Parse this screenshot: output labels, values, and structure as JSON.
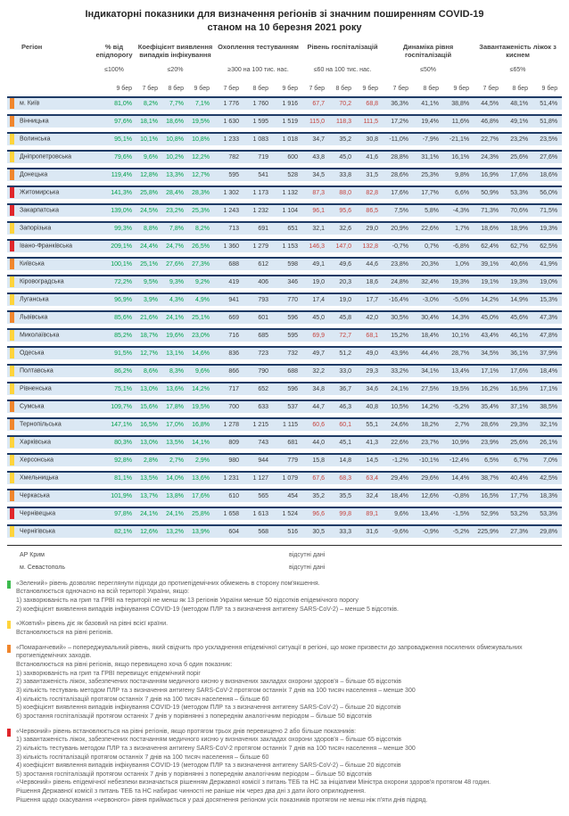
{
  "title": {
    "line1": "Індикаторні показники для визначення регіонів зі значним поширенням COVID-19",
    "line2": "станом на 10 березня 2021 року"
  },
  "level_colors": {
    "yellow": "#ffd43b",
    "orange": "#f0862d",
    "red": "#e0262b",
    "green": "#3dbb4f"
  },
  "value_colors": {
    "green_text": "#00a14b",
    "red_text": "#c5443e",
    "row_band": "#dbe8f4",
    "row_border": "#1f3b66"
  },
  "table": {
    "region_header": "Регіон",
    "groups": [
      {
        "title": "% від епідпорогу",
        "threshold": "≤100%"
      },
      {
        "title": "Коефіцієнт виявлення випадків інфікування",
        "threshold": "≤20%"
      },
      {
        "title": "Охоплення тестуванням",
        "threshold": "≥300 на 100 тис. нас."
      },
      {
        "title": "Рівень госпіталізацій",
        "threshold": "≤60 на 100 тис. нас."
      },
      {
        "title": "Динаміка рівня госпіталізацій",
        "threshold": "≤50%"
      },
      {
        "title": "Завантаженість ліжок з киснем",
        "threshold": "≤65%"
      }
    ],
    "dates": [
      "9 бер",
      "7 бер",
      "8 бер",
      "9 бер",
      "7 бер",
      "8 бер",
      "9 бер",
      "7 бер",
      "8 бер",
      "9 бер",
      "7 бер",
      "8 бер",
      "9 бер",
      "7 бер",
      "8 бер",
      "9 бер"
    ],
    "rows": [
      {
        "region": "м. Київ",
        "level": "orange",
        "epi": "81,0%",
        "coef": [
          "8,2%",
          "7,7%",
          "7,1%"
        ],
        "test": [
          "1 776",
          "1 760",
          "1 916"
        ],
        "hosp": [
          "67,7",
          "70,2",
          "68,8"
        ],
        "dyn": [
          "36,3%",
          "41,1%",
          "38,8%"
        ],
        "beds": [
          "44,5%",
          "48,1%",
          "51,4%"
        ]
      },
      {
        "region": "Вінницька",
        "level": "orange",
        "epi": "97,6%",
        "coef": [
          "18,1%",
          "18,6%",
          "19,5%"
        ],
        "test": [
          "1 630",
          "1 595",
          "1 519"
        ],
        "hosp": [
          "115,0",
          "118,3",
          "111,5"
        ],
        "dyn": [
          "17,2%",
          "19,4%",
          "11,6%"
        ],
        "beds": [
          "46,8%",
          "49,1%",
          "51,8%"
        ]
      },
      {
        "region": "Волинська",
        "level": "yellow",
        "epi": "95,1%",
        "coef": [
          "10,1%",
          "10,8%",
          "10,8%"
        ],
        "test": [
          "1 233",
          "1 083",
          "1 018"
        ],
        "hosp": [
          "34,7",
          "35,2",
          "30,8"
        ],
        "dyn": [
          "-11,0%",
          "-7,9%",
          "-21,1%"
        ],
        "beds": [
          "22,7%",
          "23,2%",
          "23,5%"
        ]
      },
      {
        "region": "Дніпропетровська",
        "level": "yellow",
        "epi": "79,6%",
        "coef": [
          "9,6%",
          "10,2%",
          "12,2%"
        ],
        "test": [
          "782",
          "719",
          "600"
        ],
        "hosp": [
          "43,8",
          "45,0",
          "41,6"
        ],
        "dyn": [
          "28,8%",
          "31,1%",
          "16,1%"
        ],
        "beds": [
          "24,3%",
          "25,6%",
          "27,6%"
        ]
      },
      {
        "region": "Донецька",
        "level": "orange",
        "epi": "119,4%",
        "coef": [
          "12,8%",
          "13,3%",
          "12,7%"
        ],
        "test": [
          "595",
          "541",
          "528"
        ],
        "hosp": [
          "34,5",
          "33,8",
          "31,5"
        ],
        "dyn": [
          "28,6%",
          "25,3%",
          "9,8%"
        ],
        "beds": [
          "16,9%",
          "17,6%",
          "18,6%"
        ]
      },
      {
        "region": "Житомирська",
        "level": "red",
        "epi": "141,3%",
        "coef": [
          "25,8%",
          "28,4%",
          "28,3%"
        ],
        "test": [
          "1 302",
          "1 173",
          "1 132"
        ],
        "hosp": [
          "87,3",
          "88,0",
          "82,8"
        ],
        "dyn": [
          "17,6%",
          "17,7%",
          "6,6%"
        ],
        "beds": [
          "50,9%",
          "53,3%",
          "56,0%"
        ]
      },
      {
        "region": "Закарпатська",
        "level": "red",
        "epi": "139,0%",
        "coef": [
          "24,5%",
          "23,2%",
          "25,3%"
        ],
        "test": [
          "1 243",
          "1 232",
          "1 104"
        ],
        "hosp": [
          "96,1",
          "95,6",
          "86,5"
        ],
        "dyn": [
          "7,5%",
          "5,8%",
          "-4,3%"
        ],
        "beds": [
          "71,3%",
          "70,6%",
          "71,5%"
        ]
      },
      {
        "region": "Запорізька",
        "level": "yellow",
        "epi": "99,3%",
        "coef": [
          "8,8%",
          "7,8%",
          "8,2%"
        ],
        "test": [
          "713",
          "691",
          "651"
        ],
        "hosp": [
          "32,1",
          "32,6",
          "29,0"
        ],
        "dyn": [
          "20,9%",
          "22,6%",
          "1,7%"
        ],
        "beds": [
          "18,6%",
          "18,9%",
          "19,3%"
        ]
      },
      {
        "region": "Івано-Франківська",
        "level": "red",
        "epi": "209,1%",
        "coef": [
          "24,4%",
          "24,7%",
          "26,5%"
        ],
        "test": [
          "1 360",
          "1 279",
          "1 153"
        ],
        "hosp": [
          "146,3",
          "147,0",
          "132,8"
        ],
        "dyn": [
          "-0,7%",
          "0,7%",
          "-6,8%"
        ],
        "beds": [
          "62,4%",
          "62,7%",
          "62,5%"
        ]
      },
      {
        "region": "Київська",
        "level": "orange",
        "epi": "100,1%",
        "coef": [
          "25,1%",
          "27,6%",
          "27,3%"
        ],
        "test": [
          "688",
          "612",
          "598"
        ],
        "hosp": [
          "49,1",
          "49,6",
          "44,6"
        ],
        "dyn": [
          "23,8%",
          "20,3%",
          "1,0%"
        ],
        "beds": [
          "39,1%",
          "40,6%",
          "41,9%"
        ]
      },
      {
        "region": "Кіровоградська",
        "level": "yellow",
        "epi": "72,2%",
        "coef": [
          "9,5%",
          "9,3%",
          "9,2%"
        ],
        "test": [
          "419",
          "406",
          "346"
        ],
        "hosp": [
          "19,0",
          "20,3",
          "18,6"
        ],
        "dyn": [
          "24,8%",
          "32,4%",
          "19,3%"
        ],
        "beds": [
          "19,1%",
          "19,3%",
          "19,0%"
        ]
      },
      {
        "region": "Луганська",
        "level": "yellow",
        "epi": "96,9%",
        "coef": [
          "3,9%",
          "4,3%",
          "4,9%"
        ],
        "test": [
          "941",
          "793",
          "770"
        ],
        "hosp": [
          "17,4",
          "19,0",
          "17,7"
        ],
        "dyn": [
          "-16,4%",
          "-3,0%",
          "-5,6%"
        ],
        "beds": [
          "14,2%",
          "14,9%",
          "15,3%"
        ]
      },
      {
        "region": "Львівська",
        "level": "orange",
        "epi": "85,6%",
        "coef": [
          "21,6%",
          "24,1%",
          "25,1%"
        ],
        "test": [
          "669",
          "601",
          "596"
        ],
        "hosp": [
          "45,0",
          "45,8",
          "42,0"
        ],
        "dyn": [
          "30,5%",
          "30,4%",
          "14,3%"
        ],
        "beds": [
          "45,0%",
          "45,6%",
          "47,3%"
        ]
      },
      {
        "region": "Миколаївська",
        "level": "yellow",
        "epi": "85,2%",
        "coef": [
          "18,7%",
          "19,6%",
          "23,0%"
        ],
        "test": [
          "716",
          "685",
          "595"
        ],
        "hosp": [
          "69,9",
          "72,7",
          "68,1"
        ],
        "dyn": [
          "15,2%",
          "18,4%",
          "10,1%"
        ],
        "beds": [
          "43,4%",
          "46,1%",
          "47,8%"
        ]
      },
      {
        "region": "Одеська",
        "level": "yellow",
        "epi": "91,5%",
        "coef": [
          "12,7%",
          "13,1%",
          "14,6%"
        ],
        "test": [
          "836",
          "723",
          "732"
        ],
        "hosp": [
          "49,7",
          "51,2",
          "49,0"
        ],
        "dyn": [
          "43,9%",
          "44,4%",
          "28,7%"
        ],
        "beds": [
          "34,5%",
          "36,1%",
          "37,9%"
        ]
      },
      {
        "region": "Полтавська",
        "level": "yellow",
        "epi": "86,2%",
        "coef": [
          "8,6%",
          "8,3%",
          "9,6%"
        ],
        "test": [
          "866",
          "790",
          "688"
        ],
        "hosp": [
          "32,2",
          "33,0",
          "29,3"
        ],
        "dyn": [
          "33,2%",
          "34,1%",
          "13,4%"
        ],
        "beds": [
          "17,1%",
          "17,6%",
          "18,4%"
        ]
      },
      {
        "region": "Рівненська",
        "level": "yellow",
        "epi": "75,1%",
        "coef": [
          "13,0%",
          "13,6%",
          "14,2%"
        ],
        "test": [
          "717",
          "652",
          "596"
        ],
        "hosp": [
          "34,8",
          "36,7",
          "34,6"
        ],
        "dyn": [
          "24,1%",
          "27,5%",
          "19,5%"
        ],
        "beds": [
          "16,2%",
          "16,5%",
          "17,1%"
        ]
      },
      {
        "region": "Сумська",
        "level": "orange",
        "epi": "109,7%",
        "coef": [
          "15,6%",
          "17,8%",
          "19,5%"
        ],
        "test": [
          "700",
          "633",
          "537"
        ],
        "hosp": [
          "44,7",
          "46,3",
          "40,8"
        ],
        "dyn": [
          "10,5%",
          "14,2%",
          "-5,2%"
        ],
        "beds": [
          "35,4%",
          "37,1%",
          "38,5%"
        ]
      },
      {
        "region": "Тернопільська",
        "level": "orange",
        "epi": "147,1%",
        "coef": [
          "16,5%",
          "17,0%",
          "16,8%"
        ],
        "test": [
          "1 278",
          "1 215",
          "1 115"
        ],
        "hosp": [
          "60,6",
          "60,1",
          "55,1"
        ],
        "dyn": [
          "24,6%",
          "18,2%",
          "2,7%"
        ],
        "beds": [
          "28,6%",
          "29,3%",
          "32,1%"
        ]
      },
      {
        "region": "Харківська",
        "level": "yellow",
        "epi": "80,3%",
        "coef": [
          "13,0%",
          "13,5%",
          "14,1%"
        ],
        "test": [
          "809",
          "743",
          "681"
        ],
        "hosp": [
          "44,0",
          "45,1",
          "41,3"
        ],
        "dyn": [
          "22,6%",
          "23,7%",
          "10,9%"
        ],
        "beds": [
          "23,9%",
          "25,6%",
          "26,1%"
        ]
      },
      {
        "region": "Херсонська",
        "level": "yellow",
        "epi": "92,8%",
        "coef": [
          "2,8%",
          "2,7%",
          "2,9%"
        ],
        "test": [
          "980",
          "944",
          "779"
        ],
        "hosp": [
          "15,8",
          "14,8",
          "14,5"
        ],
        "dyn": [
          "-1,2%",
          "-10,1%",
          "-12,4%"
        ],
        "beds": [
          "6,5%",
          "6,7%",
          "7,0%"
        ]
      },
      {
        "region": "Хмельницька",
        "level": "yellow",
        "epi": "81,1%",
        "coef": [
          "13,5%",
          "14,0%",
          "13,6%"
        ],
        "test": [
          "1 231",
          "1 127",
          "1 079"
        ],
        "hosp": [
          "67,6",
          "68,3",
          "63,4"
        ],
        "dyn": [
          "29,4%",
          "29,6%",
          "14,4%"
        ],
        "beds": [
          "38,7%",
          "40,4%",
          "42,5%"
        ]
      },
      {
        "region": "Черкаська",
        "level": "orange",
        "epi": "101,9%",
        "coef": [
          "13,7%",
          "13,8%",
          "17,6%"
        ],
        "test": [
          "610",
          "565",
          "454"
        ],
        "hosp": [
          "35,2",
          "35,5",
          "32,4"
        ],
        "dyn": [
          "18,4%",
          "12,6%",
          "-0,8%"
        ],
        "beds": [
          "16,5%",
          "17,7%",
          "18,3%"
        ]
      },
      {
        "region": "Чернівецька",
        "level": "red",
        "epi": "97,8%",
        "coef": [
          "24,1%",
          "24,1%",
          "25,8%"
        ],
        "test": [
          "1 658",
          "1 613",
          "1 524"
        ],
        "hosp": [
          "96,6",
          "99,8",
          "89,1"
        ],
        "dyn": [
          "9,6%",
          "13,4%",
          "-1,5%"
        ],
        "beds": [
          "52,9%",
          "53,2%",
          "53,3%"
        ]
      },
      {
        "region": "Чернігівська",
        "level": "yellow",
        "epi": "82,1%",
        "coef": [
          "12,6%",
          "13,2%",
          "13,9%"
        ],
        "test": [
          "604",
          "568",
          "516"
        ],
        "hosp": [
          "30,5",
          "33,3",
          "31,6"
        ],
        "dyn": [
          "-9,6%",
          "-0,9%",
          "-5,2%"
        ],
        "beds": [
          "225,9%",
          "27,3%",
          "29,8%"
        ]
      }
    ]
  },
  "no_data": [
    {
      "region": "АР Крим",
      "value": "відсутні дані"
    },
    {
      "region": "м. Севастополь",
      "value": "відсутні дані"
    }
  ],
  "legend": [
    {
      "name": "green",
      "color": "#3dbb4f",
      "lines": [
        "«Зелений» рівень дозволяє переглянути підходи до протиепідемічних обмежень в сторону пом'якшення.",
        "Встановлюється одночасно на всій території України, якщо:",
        "1) захворюваність на грип та ГРВІ на території не менш як 13 регіонів України менше 50 відсотків епідемічного порогу",
        "2) коефіцієнт виявлення випадків інфікування COVID-19 (методом ПЛР та з визначення антигену SARS-CoV-2) – менше 5 відсотків."
      ]
    },
    {
      "name": "yellow",
      "color": "#ffd43b",
      "lines": [
        "«Жовтий» рівень діє як базовий на рівні всієї країни.",
        "Встановлюється на рівні регіонів."
      ]
    },
    {
      "name": "orange",
      "color": "#f0862d",
      "lines": [
        "«Помаранчевий» – попереджувальний рівень, який свідчить про ускладнення епідемічної ситуації в регіоні, що може призвести до запровадження посилених обмежувальних протиепідемічних заходів.",
        "Встановлюється на рівні регіонів, якщо перевищено хоча б один показник:",
        "1) захворюваність на грип та ГРВІ перевищує епідемічний поріг",
        "2) завантаженість ліжок, забезпечених постачанням медичного кисню у визначених закладах охорони здоров'я – більше 65 відсотків",
        "3) кількість тестувань методом ПЛР та з визначення антигену SARS-CoV-2 протягом останніх 7 днів на 100 тисяч населення – менше 300",
        "4) кількість госпіталізацій протягом останніх 7 днів на 100 тисяч населення – більше 60",
        "5) коефіцієнт виявлення випадків інфікування COVID-19 (методом ПЛР та з визначення антигену SARS-CoV-2) – більше 20 відсотків",
        "6) зростання госпіталізацій протягом останніх 7 днів у порівнянні з попереднім аналогічним періодом – більше 50 відсотків"
      ]
    },
    {
      "name": "red",
      "color": "#e0262b",
      "lines": [
        "«Червоний» рівень встановлюється на рівні регіонів, якщо протягом трьох днів перевищено 2 або більше показників:",
        "1) завантаженість ліжок, забезпечених постачанням медичного кисню у визначених закладах охорони здоров'я – більше 65 відсотків",
        "2) кількість тестувань методом ПЛР та з визначення антигену SARS-CoV-2 протягом останніх 7 днів на 100 тисяч населення – менше 300",
        "3) кількість госпіталізацій протягом останніх 7 днів на 100 тисяч населення – більше 60",
        "4) коефіцієнт виявлення випадків інфікування COVID-19 (методом ПЛР та з визначення антигену SARS-CoV-2) – більше 20 відсотків",
        "5) зростання госпіталізацій протягом останніх 7 днів у порівнянні з попереднім аналогічним періодом – більше 50 відсотків",
        "«Червоний» рівень епідемічної небезпеки визначається рішенням Державної комісії з питань ТЕБ та НС за ініціативи Міністра охорони здоров'я протягом 48 годин.",
        "Рішення Державної комісії з питань ТЕБ та НС набирає чинності не раніше ніж через два дні з дати його оприлюднення.",
        "Рішення щодо скасування «червоного» рівня приймається у разі досягнення регіоном усіх показників протягом не менш ніж п'яти днів підряд."
      ]
    }
  ]
}
